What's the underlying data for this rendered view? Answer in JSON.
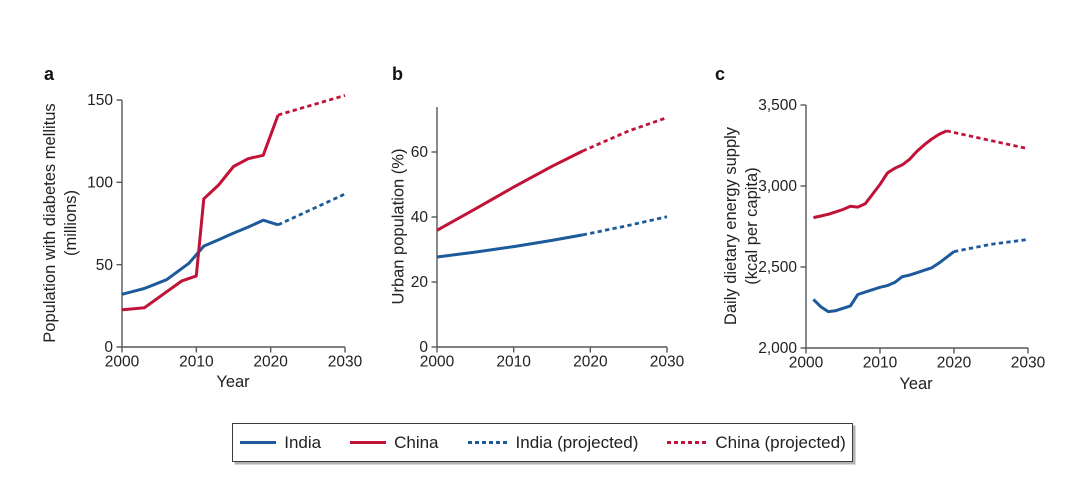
{
  "colors": {
    "india": "#1d5a9b",
    "china": "#c11238",
    "axis": "#56575a",
    "text": "#232023"
  },
  "panels": [
    {
      "panel_label": "a",
      "y_axis_label_lines": [
        "Population with diabetes mellitus",
        "(millions)"
      ],
      "x_axis_label": "Year"
    },
    {
      "panel_label": "b",
      "y_axis_label_lines": [
        "Urban population (%)"
      ],
      "x_axis_label": ""
    },
    {
      "panel_label": "c",
      "y_axis_label_lines": [
        "Daily dietary energy supply",
        "(kcal per capita)"
      ],
      "x_axis_label": "Year"
    }
  ],
  "legend": {
    "items": [
      {
        "label": "India",
        "color_key": "india",
        "dashed": false
      },
      {
        "label": "China",
        "color_key": "china",
        "dashed": false
      },
      {
        "label": "India (projected)",
        "color_key": "india",
        "dashed": true
      },
      {
        "label": "China (projected)",
        "color_key": "china",
        "dashed": true
      }
    ]
  },
  "chart_data": [
    {
      "type": "line",
      "panel": "a",
      "title": "Population with diabetes mellitus",
      "xlabel": "Year",
      "ylabel": "Population with diabetes mellitus (millions)",
      "xlim": [
        2000,
        2030
      ],
      "ylim": [
        0,
        150
      ],
      "x_ticks": [
        2000,
        2010,
        2020,
        2030
      ],
      "x_tick_labels": [
        "2000",
        "2010",
        "2020",
        "2030"
      ],
      "y_ticks": [
        0,
        50,
        100,
        150
      ],
      "y_tick_labels": [
        "0",
        "50",
        "100",
        "150"
      ],
      "series": [
        {
          "name": "India",
          "color_key": "india",
          "solid": [
            [
              2000,
              32
            ],
            [
              2003,
              35.5
            ],
            [
              2006,
              40.9
            ],
            [
              2009,
              50.8
            ],
            [
              2011,
              61.3
            ],
            [
              2013,
              65.1
            ],
            [
              2015,
              69.2
            ],
            [
              2017,
              72.9
            ],
            [
              2019,
              77
            ],
            [
              2021,
              74.2
            ]
          ],
          "projected": [
            [
              2021,
              74.2
            ],
            [
              2030,
              92.9
            ]
          ]
        },
        {
          "name": "China",
          "color_key": "china",
          "solid": [
            [
              2000,
              22.6
            ],
            [
              2003,
              23.8
            ],
            [
              2008,
              40
            ],
            [
              2010,
              43.2
            ],
            [
              2011,
              90
            ],
            [
              2013,
              98.4
            ],
            [
              2015,
              109.6
            ],
            [
              2017,
              114.4
            ],
            [
              2019,
              116.4
            ],
            [
              2021,
              140.9
            ]
          ],
          "projected": [
            [
              2021,
              140.9
            ],
            [
              2030,
              152.8
            ]
          ]
        }
      ]
    },
    {
      "type": "line",
      "panel": "b",
      "title": "Urban population (%)",
      "xlabel": "",
      "ylabel": "Urban population (%)",
      "xlim": [
        2000,
        2030
      ],
      "ylim": [
        0,
        74
      ],
      "x_ticks": [
        2000,
        2010,
        2020,
        2030
      ],
      "x_tick_labels": [
        "2000",
        "2010",
        "2020",
        "2030"
      ],
      "y_ticks": [
        0,
        20,
        40,
        60
      ],
      "y_tick_labels": [
        "0",
        "20",
        "40",
        "60"
      ],
      "series": [
        {
          "name": "India",
          "color_key": "india",
          "solid": [
            [
              2000,
              27.7
            ],
            [
              2005,
              29.2
            ],
            [
              2010,
              30.9
            ],
            [
              2015,
              32.8
            ],
            [
              2019,
              34.5
            ]
          ],
          "projected": [
            [
              2019,
              34.5
            ],
            [
              2025,
              37.4
            ],
            [
              2030,
              40.1
            ]
          ]
        },
        {
          "name": "China",
          "color_key": "china",
          "solid": [
            [
              2000,
              35.9
            ],
            [
              2005,
              42.5
            ],
            [
              2010,
              49.2
            ],
            [
              2015,
              55.6
            ],
            [
              2019,
              60.3
            ]
          ],
          "projected": [
            [
              2019,
              60.3
            ],
            [
              2025,
              66.5
            ],
            [
              2030,
              70.6
            ]
          ]
        }
      ]
    },
    {
      "type": "line",
      "panel": "c",
      "title": "Daily dietary energy supply",
      "xlabel": "Year",
      "ylabel": "Daily dietary energy supply (kcal per capita)",
      "xlim": [
        2000,
        2030
      ],
      "ylim": [
        2000,
        3500
      ],
      "x_ticks": [
        2000,
        2010,
        2020,
        2030
      ],
      "x_tick_labels": [
        "2000",
        "2010",
        "2020",
        "2030"
      ],
      "y_ticks": [
        2000,
        2500,
        3000,
        3500
      ],
      "y_tick_labels": [
        "2,000",
        "2,500",
        "3,000",
        "3,500"
      ],
      "series": [
        {
          "name": "India",
          "color_key": "india",
          "solid": [
            [
              2001,
              2300
            ],
            [
              2002,
              2255
            ],
            [
              2003,
              2225
            ],
            [
              2004,
              2230
            ],
            [
              2005,
              2245
            ],
            [
              2006,
              2260
            ],
            [
              2007,
              2330
            ],
            [
              2008,
              2345
            ],
            [
              2009,
              2360
            ],
            [
              2010,
              2375
            ],
            [
              2011,
              2385
            ],
            [
              2012,
              2405
            ],
            [
              2013,
              2440
            ],
            [
              2014,
              2450
            ],
            [
              2015,
              2465
            ],
            [
              2016,
              2480
            ],
            [
              2017,
              2495
            ],
            [
              2018,
              2525
            ],
            [
              2019,
              2560
            ],
            [
              2020,
              2595
            ]
          ],
          "projected": [
            [
              2020,
              2595
            ],
            [
              2025,
              2640
            ],
            [
              2030,
              2670
            ]
          ]
        },
        {
          "name": "China",
          "color_key": "china",
          "solid": [
            [
              2001,
              2805
            ],
            [
              2002,
              2815
            ],
            [
              2003,
              2825
            ],
            [
              2004,
              2840
            ],
            [
              2005,
              2855
            ],
            [
              2006,
              2875
            ],
            [
              2007,
              2870
            ],
            [
              2008,
              2890
            ],
            [
              2009,
              2950
            ],
            [
              2010,
              3010
            ],
            [
              2011,
              3080
            ],
            [
              2012,
              3110
            ],
            [
              2013,
              3130
            ],
            [
              2014,
              3165
            ],
            [
              2015,
              3215
            ],
            [
              2016,
              3255
            ],
            [
              2017,
              3290
            ],
            [
              2018,
              3320
            ],
            [
              2019,
              3340
            ]
          ],
          "projected": [
            [
              2019,
              3340
            ],
            [
              2030,
              3230
            ]
          ]
        }
      ]
    }
  ]
}
